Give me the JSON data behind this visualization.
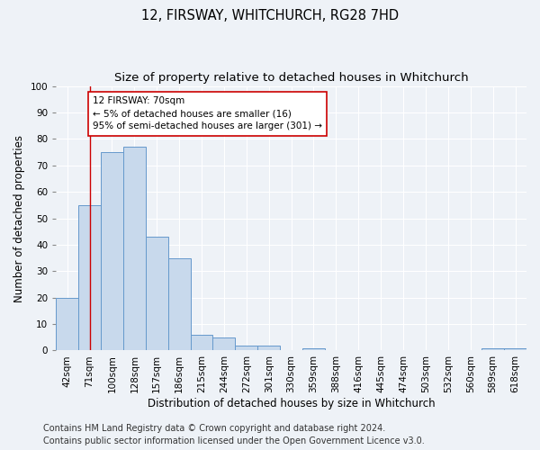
{
  "title": "12, FIRSWAY, WHITCHURCH, RG28 7HD",
  "subtitle": "Size of property relative to detached houses in Whitchurch",
  "xlabel": "Distribution of detached houses by size in Whitchurch",
  "ylabel": "Number of detached properties",
  "categories": [
    "42sqm",
    "71sqm",
    "100sqm",
    "128sqm",
    "157sqm",
    "186sqm",
    "215sqm",
    "244sqm",
    "272sqm",
    "301sqm",
    "330sqm",
    "359sqm",
    "388sqm",
    "416sqm",
    "445sqm",
    "474sqm",
    "503sqm",
    "532sqm",
    "560sqm",
    "589sqm",
    "618sqm"
  ],
  "values": [
    20,
    55,
    75,
    77,
    43,
    35,
    6,
    5,
    2,
    2,
    0,
    1,
    0,
    0,
    0,
    0,
    0,
    0,
    0,
    1,
    1
  ],
  "bar_color": "#c8d9ec",
  "bar_edge_color": "#6699cc",
  "vline_x": 1.0,
  "vline_color": "#cc0000",
  "annotation_text": "12 FIRSWAY: 70sqm\n← 5% of detached houses are smaller (16)\n95% of semi-detached houses are larger (301) →",
  "annotation_box_color": "#ffffff",
  "annotation_box_edge": "#cc0000",
  "ylim": [
    0,
    100
  ],
  "yticks": [
    0,
    10,
    20,
    30,
    40,
    50,
    60,
    70,
    80,
    90,
    100
  ],
  "footer_line1": "Contains HM Land Registry data © Crown copyright and database right 2024.",
  "footer_line2": "Contains public sector information licensed under the Open Government Licence v3.0.",
  "bg_color": "#eef2f7",
  "grid_color": "#ffffff",
  "title_fontsize": 10.5,
  "subtitle_fontsize": 9.5,
  "axis_label_fontsize": 8.5,
  "tick_fontsize": 7.5,
  "annotation_fontsize": 7.5,
  "footer_fontsize": 7.0
}
